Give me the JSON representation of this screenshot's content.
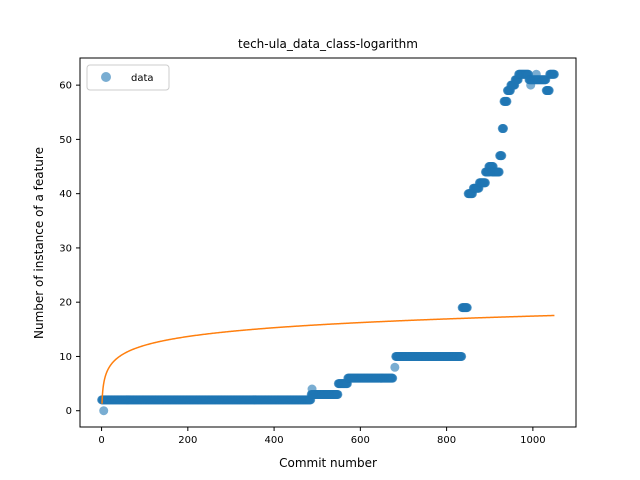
{
  "chart_data": {
    "type": "scatter",
    "title": "tech-ula_data_class-logarithm",
    "xlabel": "Commit number",
    "ylabel": "Number of instance of a feature",
    "xlim": [
      -50,
      1100
    ],
    "ylim": [
      -3,
      65
    ],
    "xticks": [
      0,
      200,
      400,
      600,
      800,
      1000
    ],
    "yticks": [
      0,
      10,
      20,
      30,
      40,
      50,
      60
    ],
    "grid": false,
    "legend": {
      "position": "top-left",
      "entries": [
        "data"
      ]
    },
    "colors": {
      "data": "#1f77b4",
      "fit": "#ff7f0e"
    },
    "series": [
      {
        "name": "data",
        "kind": "scatter",
        "segments": [
          {
            "x_start": 0,
            "x_end": 485,
            "y": 2
          },
          {
            "x_start": 486,
            "x_end": 548,
            "y": 3
          },
          {
            "x_start": 549,
            "x_end": 570,
            "y": 5
          },
          {
            "x_start": 571,
            "x_end": 675,
            "y": 6
          },
          {
            "x_start": 682,
            "x_end": 835,
            "y": 10
          },
          {
            "x_start": 836,
            "x_end": 848,
            "y": 19
          },
          {
            "x_start": 850,
            "x_end": 860,
            "y": 40
          },
          {
            "x_start": 862,
            "x_end": 875,
            "y": 41
          },
          {
            "x_start": 876,
            "x_end": 890,
            "y": 42
          },
          {
            "x_start": 890,
            "x_end": 900,
            "y": 44
          },
          {
            "x_start": 898,
            "x_end": 908,
            "y": 45
          },
          {
            "x_start": 905,
            "x_end": 922,
            "y": 44
          },
          {
            "x_start": 923,
            "x_end": 928,
            "y": 47
          },
          {
            "x_start": 929,
            "x_end": 932,
            "y": 52
          },
          {
            "x_start": 933,
            "x_end": 940,
            "y": 57
          },
          {
            "x_start": 941,
            "x_end": 948,
            "y": 59
          },
          {
            "x_start": 949,
            "x_end": 958,
            "y": 60
          },
          {
            "x_start": 959,
            "x_end": 966,
            "y": 61
          },
          {
            "x_start": 967,
            "x_end": 990,
            "y": 62
          },
          {
            "x_start": 991,
            "x_end": 1005,
            "y": 61
          },
          {
            "x_start": 1006,
            "x_end": 1030,
            "y": 61
          },
          {
            "x_start": 1031,
            "x_end": 1038,
            "y": 59
          },
          {
            "x_start": 1039,
            "x_end": 1050,
            "y": 62
          }
        ],
        "points": [
          {
            "x": 5,
            "y": 0
          },
          {
            "x": 488,
            "y": 4
          },
          {
            "x": 680,
            "y": 8
          },
          {
            "x": 995,
            "y": 60
          },
          {
            "x": 1008,
            "y": 62
          },
          {
            "x": 955,
            "y": 60
          }
        ]
      },
      {
        "name": "",
        "kind": "line",
        "function": "logarithm",
        "x_range": [
          1,
          1050
        ],
        "samples": [
          {
            "x": 1,
            "y": 0.0
          },
          {
            "x": 5,
            "y": 5.05
          },
          {
            "x": 25,
            "y": 10.13
          },
          {
            "x": 50,
            "y": 12.32
          },
          {
            "x": 100,
            "y": 14.5
          },
          {
            "x": 200,
            "y": 15.6
          },
          {
            "x": 400,
            "y": 16.3
          },
          {
            "x": 600,
            "y": 16.75
          },
          {
            "x": 800,
            "y": 17.1
          },
          {
            "x": 1050,
            "y": 17.55
          }
        ]
      }
    ]
  }
}
